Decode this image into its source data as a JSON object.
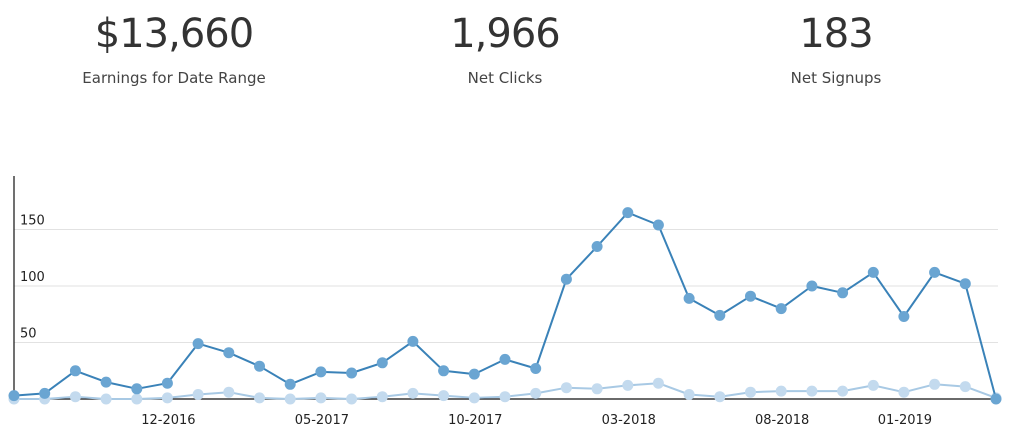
{
  "stats": [
    {
      "value": "$13,660",
      "label": "Earnings for Date Range"
    },
    {
      "value": "1,966",
      "label": "Net Clicks"
    },
    {
      "value": "183",
      "label": "Net Signups"
    }
  ],
  "chart_data": {
    "type": "line",
    "title": "",
    "xlabel": "",
    "ylabel": "",
    "ylim": [
      0,
      175
    ],
    "y_ticks": [
      "50",
      "100",
      "150"
    ],
    "x_tick_labels": [
      "12-2016",
      "05-2017",
      "10-2017",
      "03-2018",
      "08-2018",
      "01-2019"
    ],
    "grid": true,
    "series": [
      {
        "color": "#3a82b8",
        "marker_color": "#6aa5d2",
        "values": [
          3,
          5,
          25,
          15,
          9,
          14,
          49,
          41,
          29,
          13,
          24,
          23,
          32,
          51,
          25,
          22,
          35,
          27,
          106,
          135,
          165,
          154,
          89,
          74,
          91,
          80,
          100,
          94,
          112,
          73,
          112,
          102,
          0
        ]
      },
      {
        "color": "#a8c9e4",
        "marker_color": "#c3daee",
        "values": [
          0,
          0,
          2,
          0,
          0,
          1,
          4,
          6,
          1,
          0,
          1,
          0,
          2,
          5,
          3,
          1,
          2,
          5,
          10,
          9,
          12,
          14,
          4,
          2,
          6,
          7,
          7,
          7,
          12,
          6,
          13,
          11,
          1
        ]
      }
    ]
  },
  "colors": {
    "axis": "#111111",
    "grid": "#e2e2e2"
  }
}
